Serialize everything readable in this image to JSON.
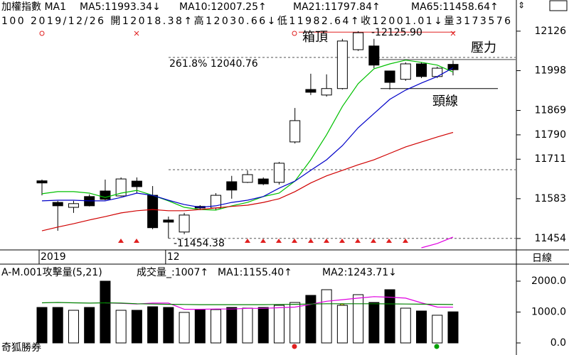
{
  "chart_data": [
    {
      "type": "candlestick",
      "title": "加權指數 MA1",
      "subtitle": "100 2019/12/26 開12018.38↑高12030.66↓低11982.64↑收12001.01↓量3173576",
      "period": "日線",
      "categories": [
        "2019",
        null,
        null,
        null,
        null,
        null,
        null,
        null,
        "12",
        null,
        null,
        null,
        null,
        null,
        null,
        null,
        null,
        null,
        null,
        null,
        null,
        null,
        null,
        null,
        null,
        null,
        null
      ],
      "open": [
        11641,
        11571,
        11555,
        11590,
        11608,
        11592,
        11640,
        11594,
        11514,
        11475,
        11558,
        11553,
        11638,
        11636,
        11647,
        11636,
        11767,
        11937,
        11919,
        11940,
        12066,
        12078,
        11997,
        11970,
        12020,
        11979,
        12018.38
      ],
      "high": [
        11645,
        11576,
        11576,
        11597,
        11645,
        11652,
        11652,
        11624,
        11525,
        11537,
        11562,
        11601,
        11657,
        11675,
        11652,
        11702,
        11877,
        11988,
        11986,
        12101,
        12125.9,
        12101,
        11998,
        12025,
        12025,
        12011,
        12030.66
      ],
      "low": [
        11594,
        11479,
        11537,
        11558,
        11578,
        11590,
        11601,
        11484,
        11454.38,
        11468,
        11546,
        11546,
        11583,
        11634,
        11627,
        11629,
        11762,
        11919,
        11914,
        11937,
        12062,
        12006,
        11937,
        11965,
        11974,
        11974,
        11982.64
      ],
      "close": [
        11634,
        11560,
        11567,
        11560,
        11581,
        11647,
        11622,
        11489,
        11507,
        11530,
        11553,
        11594,
        11611,
        11661,
        11631,
        11698,
        11836,
        11928,
        11940,
        12094,
        12121,
        12016,
        11960,
        12020,
        11979,
        12006,
        12001.01
      ],
      "series": [
        {
          "name": "MA5:11993.34↓",
          "color": "#00c000",
          "values": [
            11599,
            11606,
            11606,
            11601,
            11587,
            11601,
            11610,
            11594,
            11576,
            11555,
            11548,
            11546,
            11560,
            11571,
            11590,
            11601,
            11640,
            11709,
            11790,
            11882,
            11956,
            12004,
            12020,
            12032,
            12025,
            12016,
            11993.34
          ]
        },
        {
          "name": "MA10:12007.25↑",
          "color": "#0000c8",
          "values": [
            11576,
            11578,
            11578,
            11576,
            11576,
            11587,
            11601,
            11594,
            11578,
            11564,
            11555,
            11560,
            11571,
            11578,
            11590,
            11617,
            11640,
            11675,
            11709,
            11755,
            11813,
            11859,
            11905,
            11935,
            11958,
            11979,
            12007.25
          ]
        },
        {
          "name": "MA21:11797.84↑",
          "color": "#d00000",
          "values": [
            11479,
            11491,
            11502,
            11514,
            11525,
            11537,
            11544,
            11548,
            11544,
            11544,
            11548,
            11553,
            11558,
            11562,
            11571,
            11583,
            11606,
            11634,
            11657,
            11675,
            11693,
            11709,
            11730,
            11751,
            11767,
            11783,
            11797.84
          ]
        },
        {
          "name": "MA65:11458.64↑",
          "color": "#e000e0",
          "values": [
            null,
            null,
            null,
            null,
            null,
            null,
            null,
            null,
            null,
            null,
            null,
            null,
            null,
            null,
            null,
            null,
            null,
            null,
            null,
            null,
            null,
            null,
            null,
            null,
            11424,
            11438,
            11458.64
          ]
        }
      ],
      "levels": [
        {
          "value": 12040.76,
          "label": "261.8% 12040.76"
        },
        {
          "value": 11677
        }
      ],
      "extremes": [
        {
          "value": 12125.9,
          "label": "-12125.90"
        },
        {
          "value": 11454.38,
          "label": "-11454.38"
        }
      ],
      "annotations": [
        {
          "text": "箱頂",
          "value": 12123,
          "color": "#e02020"
        },
        {
          "text": "壓力",
          "value": 12034,
          "color": "#404040"
        },
        {
          "text": "頸線",
          "value": 11940,
          "color": "#000000"
        }
      ],
      "ylim": [
        11417,
        12227
      ],
      "yticks": [
        12126,
        11998,
        11869,
        11790,
        11711,
        11583,
        11454
      ]
    },
    {
      "type": "bar",
      "title": "A-M.001攻擊量(5,21)",
      "bar_label": "成交量_:1007↑",
      "bar_label_color": "#0000c8",
      "values": [
        1149,
        1149,
        1057,
        1149,
        2000,
        1057,
        1057,
        1172,
        1149,
        989,
        1080,
        1080,
        1149,
        1126,
        1149,
        1218,
        1310,
        1540,
        1724,
        1218,
        1563,
        1310,
        1724,
        1126,
        1034,
        897,
        1007
      ],
      "series": [
        {
          "name": "MA1:1155.40↑",
          "color": "#e000e0",
          "values": [
            null,
            null,
            null,
            null,
            1300,
            1280,
            1260,
            1290,
            1290,
            1090,
            1090,
            1100,
            1100,
            1120,
            1120,
            1140,
            1160,
            1250,
            1350,
            1400,
            1450,
            1500,
            1480,
            1450,
            1300,
            1160,
            1155.4
          ]
        },
        {
          "name": "MA2:1243.71↓",
          "color": "#008000",
          "values": [
            1300,
            1310,
            1300,
            1290,
            1300,
            1290,
            1270,
            1260,
            1250,
            1245,
            1240,
            1240,
            1240,
            1240,
            1240,
            1245,
            1250,
            1260,
            1270,
            1270,
            1270,
            1270,
            1265,
            1260,
            1255,
            1250,
            1243.71
          ]
        }
      ],
      "ylim": [
        -391,
        2552
      ],
      "yticks": [
        {
          "value": 2000,
          "label": "2000.0"
        },
        {
          "value": 1000,
          "label": "1000.0"
        },
        {
          "value": 0,
          "label": "0.0"
        }
      ]
    }
  ],
  "footer": "奇狐勝券"
}
